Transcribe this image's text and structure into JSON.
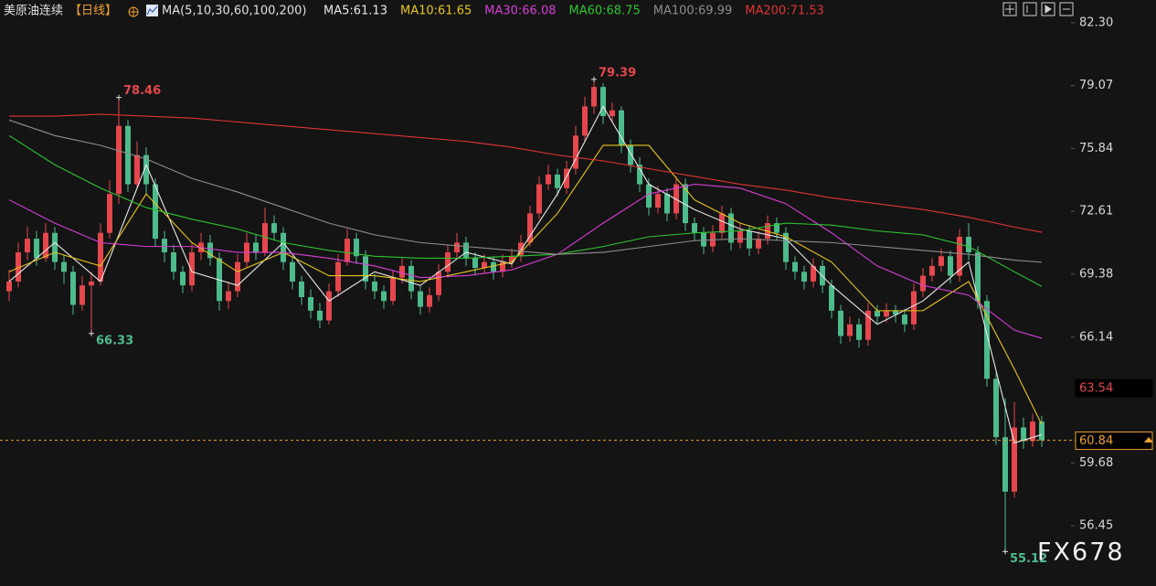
{
  "header": {
    "symbol": "美原油连续",
    "period": "【日线】",
    "ma_params": "MA(5,10,30,60,100,200)"
  },
  "chart_data": {
    "type": "candlestick",
    "ylim": [
      53.35,
      83.47
    ],
    "yticks": [
      {
        "value": 82.3,
        "label": "82.30"
      },
      79.07,
      75.84,
      72.61,
      69.38,
      66.14,
      59.68,
      56.45
    ],
    "grid": false,
    "up_color": "#e5474d",
    "down_color": "#4dbb8c",
    "ohlc": [
      [
        68.5,
        69.6,
        68.0,
        69.0
      ],
      [
        69.0,
        71.0,
        68.7,
        70.5
      ],
      [
        70.5,
        71.8,
        70.1,
        71.2
      ],
      [
        71.2,
        71.6,
        69.8,
        70.2
      ],
      [
        70.2,
        72.0,
        70.0,
        71.5
      ],
      [
        71.5,
        71.8,
        69.6,
        70.0
      ],
      [
        70.0,
        70.4,
        68.9,
        69.5
      ],
      [
        69.5,
        69.8,
        67.3,
        67.8
      ],
      [
        67.8,
        69.3,
        67.5,
        68.8
      ],
      [
        68.8,
        69.5,
        66.33,
        69.0
      ],
      [
        69.0,
        72.0,
        68.8,
        71.5
      ],
      [
        71.5,
        74.2,
        71.2,
        73.5
      ],
      [
        73.5,
        78.46,
        73.0,
        77.0
      ],
      [
        77.0,
        77.3,
        73.6,
        74.0
      ],
      [
        74.0,
        76.2,
        73.8,
        75.5
      ],
      [
        75.5,
        75.9,
        73.5,
        74.0
      ],
      [
        74.0,
        74.3,
        70.8,
        71.2
      ],
      [
        71.2,
        71.6,
        70.0,
        70.5
      ],
      [
        70.5,
        70.9,
        69.1,
        69.5
      ],
      [
        69.5,
        69.8,
        68.4,
        68.8
      ],
      [
        68.8,
        71.0,
        68.5,
        70.5
      ],
      [
        70.5,
        71.5,
        70.1,
        71.0
      ],
      [
        71.0,
        71.4,
        69.8,
        70.2
      ],
      [
        70.2,
        70.5,
        67.5,
        68.0
      ],
      [
        68.0,
        69.0,
        67.6,
        68.5
      ],
      [
        68.5,
        70.4,
        68.2,
        70.0
      ],
      [
        70.0,
        71.5,
        69.7,
        71.0
      ],
      [
        71.0,
        71.4,
        70.1,
        70.5
      ],
      [
        70.5,
        72.8,
        70.3,
        72.0
      ],
      [
        72.0,
        72.4,
        71.1,
        71.5
      ],
      [
        71.5,
        71.8,
        69.6,
        70.0
      ],
      [
        70.0,
        70.3,
        68.6,
        69.0
      ],
      [
        69.0,
        69.3,
        67.8,
        68.2
      ],
      [
        68.2,
        68.6,
        67.1,
        67.5
      ],
      [
        67.5,
        67.9,
        66.6,
        67.0
      ],
      [
        67.0,
        68.9,
        66.8,
        68.5
      ],
      [
        68.5,
        70.4,
        68.2,
        70.0
      ],
      [
        70.0,
        71.7,
        69.8,
        71.2
      ],
      [
        71.2,
        71.5,
        69.9,
        70.3
      ],
      [
        70.3,
        70.6,
        68.6,
        69.0
      ],
      [
        69.0,
        69.4,
        68.1,
        68.5
      ],
      [
        68.5,
        68.8,
        67.6,
        68.0
      ],
      [
        68.0,
        69.6,
        67.8,
        69.2
      ],
      [
        69.2,
        70.2,
        68.9,
        69.8
      ],
      [
        69.8,
        70.1,
        68.1,
        68.5
      ],
      [
        68.5,
        68.8,
        67.3,
        67.7
      ],
      [
        67.7,
        68.7,
        67.4,
        68.3
      ],
      [
        68.3,
        69.9,
        68.0,
        69.5
      ],
      [
        69.5,
        70.9,
        69.2,
        70.5
      ],
      [
        70.5,
        71.5,
        70.2,
        71.0
      ],
      [
        71.0,
        71.3,
        69.8,
        70.2
      ],
      [
        70.2,
        70.5,
        69.3,
        69.7
      ],
      [
        69.7,
        70.4,
        69.4,
        70.0
      ],
      [
        70.0,
        70.3,
        69.1,
        69.5
      ],
      [
        69.5,
        70.4,
        69.2,
        70.0
      ],
      [
        70.0,
        70.7,
        69.7,
        70.3
      ],
      [
        70.3,
        71.4,
        70.0,
        71.0
      ],
      [
        71.0,
        72.9,
        70.8,
        72.5
      ],
      [
        72.5,
        74.4,
        72.2,
        74.0
      ],
      [
        74.0,
        75.0,
        73.7,
        74.5
      ],
      [
        74.5,
        74.8,
        73.4,
        73.8
      ],
      [
        73.8,
        75.2,
        73.5,
        74.8
      ],
      [
        74.8,
        77.0,
        74.5,
        76.5
      ],
      [
        76.5,
        78.5,
        76.2,
        78.0
      ],
      [
        78.0,
        79.39,
        77.6,
        79.0
      ],
      [
        79.0,
        79.2,
        77.1,
        77.5
      ],
      [
        77.5,
        78.2,
        77.2,
        77.8
      ],
      [
        77.8,
        78.0,
        75.6,
        76.0
      ],
      [
        76.0,
        76.3,
        74.6,
        75.0
      ],
      [
        75.0,
        75.4,
        73.6,
        74.0
      ],
      [
        74.0,
        74.3,
        72.4,
        72.8
      ],
      [
        72.8,
        73.9,
        72.5,
        73.5
      ],
      [
        73.5,
        73.8,
        72.1,
        72.5
      ],
      [
        72.5,
        74.4,
        72.2,
        74.0
      ],
      [
        74.0,
        74.3,
        71.6,
        72.0
      ],
      [
        72.0,
        72.3,
        71.1,
        71.5
      ],
      [
        71.5,
        71.8,
        70.4,
        70.8
      ],
      [
        70.8,
        71.9,
        70.5,
        71.5
      ],
      [
        71.5,
        72.9,
        71.2,
        72.5
      ],
      [
        72.5,
        72.8,
        70.6,
        71.0
      ],
      [
        71.0,
        72.0,
        70.7,
        71.6
      ],
      [
        71.6,
        71.9,
        70.3,
        70.7
      ],
      [
        70.7,
        71.6,
        70.4,
        71.2
      ],
      [
        71.2,
        72.4,
        70.9,
        72.0
      ],
      [
        72.0,
        72.3,
        71.1,
        71.5
      ],
      [
        71.5,
        71.8,
        69.6,
        70.0
      ],
      [
        70.0,
        70.3,
        69.1,
        69.5
      ],
      [
        69.5,
        69.8,
        68.6,
        69.0
      ],
      [
        69.0,
        70.2,
        68.7,
        69.8
      ],
      [
        69.8,
        70.1,
        68.4,
        68.8
      ],
      [
        68.8,
        69.1,
        67.1,
        67.5
      ],
      [
        67.5,
        67.8,
        65.8,
        66.2
      ],
      [
        66.2,
        67.2,
        65.9,
        66.8
      ],
      [
        66.8,
        67.1,
        65.6,
        66.0
      ],
      [
        66.0,
        67.9,
        65.7,
        67.5
      ],
      [
        67.5,
        67.8,
        66.8,
        67.2
      ],
      [
        67.2,
        67.9,
        66.9,
        67.5
      ],
      [
        67.5,
        67.8,
        66.9,
        67.3
      ],
      [
        67.3,
        67.6,
        66.4,
        66.8
      ],
      [
        66.8,
        68.9,
        66.5,
        68.5
      ],
      [
        68.5,
        69.7,
        68.2,
        69.3
      ],
      [
        69.3,
        70.2,
        69.0,
        69.8
      ],
      [
        69.8,
        70.7,
        69.5,
        70.3
      ],
      [
        70.3,
        70.6,
        68.9,
        69.3
      ],
      [
        69.3,
        71.7,
        69.0,
        71.3
      ],
      [
        71.3,
        72.0,
        70.1,
        70.5
      ],
      [
        70.5,
        70.8,
        67.6,
        68.0
      ],
      [
        68.0,
        68.3,
        63.6,
        64.0
      ],
      [
        64.0,
        64.3,
        60.6,
        61.0
      ],
      [
        61.0,
        63.0,
        55.12,
        58.2
      ],
      [
        58.2,
        62.8,
        57.9,
        61.5
      ],
      [
        61.5,
        62.0,
        60.4,
        60.8
      ],
      [
        60.8,
        62.2,
        60.5,
        61.8
      ],
      [
        61.8,
        62.1,
        60.5,
        60.84
      ]
    ],
    "ma_index": [
      0,
      5,
      10,
      15,
      20,
      25,
      30,
      35,
      40,
      45,
      50,
      55,
      60,
      65,
      70,
      75,
      80,
      85,
      90,
      95,
      100,
      105,
      110,
      113
    ],
    "series": [
      {
        "name": "MA5:61.13",
        "color": "#e8e8e8",
        "values": [
          69.0,
          71.0,
          69.0,
          75.0,
          69.5,
          68.8,
          71.0,
          68.0,
          69.5,
          68.8,
          70.5,
          69.9,
          73.5,
          78.0,
          74.0,
          72.7,
          71.7,
          71.2,
          68.8,
          66.8,
          68.0,
          70.0,
          60.7,
          61.13
        ]
      },
      {
        "name": "MA10:61.65",
        "color": "#e6c619",
        "values": [
          69.5,
          70.5,
          69.8,
          73.5,
          71.0,
          69.5,
          70.5,
          69.3,
          69.3,
          69.0,
          69.5,
          70.0,
          72.5,
          76.0,
          76.0,
          73.2,
          72.0,
          71.3,
          70.0,
          67.5,
          67.5,
          69.0,
          64.5,
          61.65
        ]
      },
      {
        "name": "MA30:66.08",
        "color": "#d63fd6",
        "values": [
          73.2,
          72.0,
          71.0,
          70.8,
          70.8,
          70.5,
          70.5,
          70.2,
          69.8,
          69.2,
          69.3,
          69.6,
          70.4,
          72.0,
          73.5,
          74.0,
          73.8,
          73.0,
          71.5,
          69.8,
          68.8,
          68.3,
          66.5,
          66.08
        ]
      },
      {
        "name": "MA60:68.75",
        "color": "#2fc42f",
        "values": [
          76.5,
          75.0,
          73.8,
          72.8,
          72.2,
          71.7,
          71.0,
          70.6,
          70.3,
          70.2,
          70.2,
          70.3,
          70.4,
          70.8,
          71.3,
          71.5,
          71.6,
          72.0,
          71.9,
          71.6,
          71.4,
          70.8,
          69.5,
          68.75
        ]
      },
      {
        "name": "MA100:69.99",
        "color": "#8e8e8e",
        "values": [
          77.3,
          76.5,
          76.0,
          75.3,
          74.3,
          73.6,
          72.8,
          72.0,
          71.4,
          71.0,
          70.8,
          70.6,
          70.4,
          70.5,
          70.8,
          71.1,
          71.2,
          71.1,
          71.0,
          70.8,
          70.6,
          70.4,
          70.1,
          69.99
        ]
      },
      {
        "name": "MA200:71.53",
        "color": "#e03434",
        "values": [
          77.5,
          77.5,
          77.6,
          77.5,
          77.4,
          77.2,
          77.0,
          76.8,
          76.6,
          76.4,
          76.2,
          75.9,
          75.5,
          75.2,
          74.8,
          74.4,
          74.0,
          73.7,
          73.3,
          73.0,
          72.7,
          72.3,
          71.8,
          71.53
        ]
      }
    ],
    "annotations": [
      {
        "index": 12,
        "value": 78.46,
        "color": "#e5474d"
      },
      {
        "index": 9,
        "value": 66.33,
        "color": "#4dbb8c"
      },
      {
        "index": 64,
        "value": 79.39,
        "color": "#e5474d"
      },
      {
        "index": 109,
        "value": 55.12,
        "color": "#4dbb8c"
      }
    ],
    "price_tags": [
      {
        "value": 63.54,
        "color": "#e5474d",
        "border": "#000000"
      },
      {
        "value": 60.84,
        "color": "#f0a030",
        "border": "#f0a030"
      }
    ],
    "watermark": "FX678"
  }
}
